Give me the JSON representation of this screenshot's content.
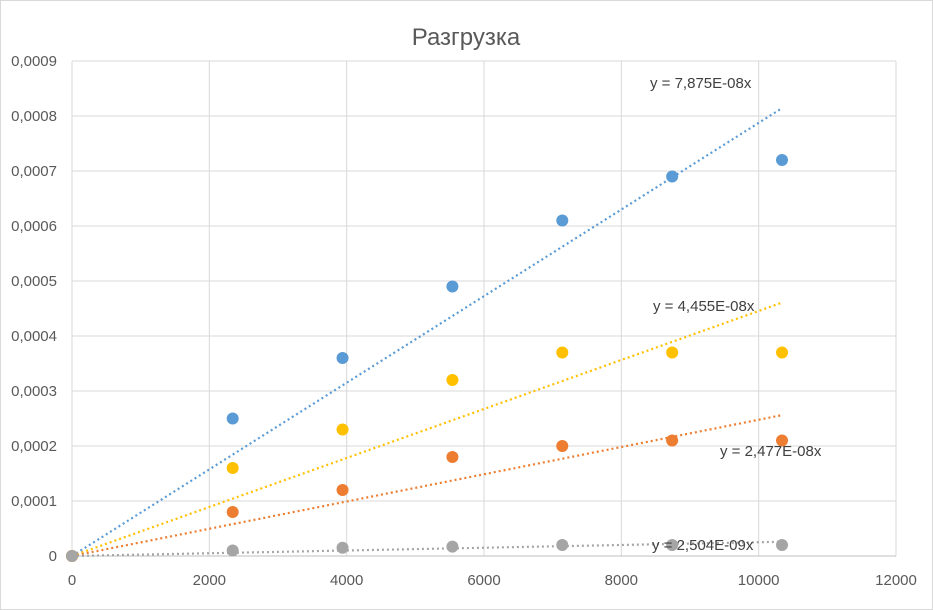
{
  "chart_data": {
    "type": "scatter",
    "title": "Разгрузка",
    "xlim": [
      0,
      12000
    ],
    "ylim": [
      0,
      0.0009
    ],
    "grid": true,
    "x_ticks": [
      "0",
      "2000",
      "4000",
      "6000",
      "8000",
      "10000",
      "12000"
    ],
    "y_ticks": [
      "0",
      "0,0001",
      "0,0002",
      "0,0003",
      "0,0004",
      "0,0005",
      "0,0006",
      "0,0007",
      "0,0008",
      "0,0009"
    ],
    "series": [
      {
        "color": "#5b9bd5",
        "x": [
          0,
          2340,
          3940,
          5540,
          7140,
          8740,
          10340
        ],
        "y": [
          0,
          0.00025,
          0.00036,
          0.00049,
          0.00061,
          0.00069,
          0.00072
        ],
        "trendline": {
          "slope": 7.875e-08,
          "label": "y = 7,875E-08x"
        }
      },
      {
        "color": "#ffc000",
        "x": [
          0,
          2340,
          3940,
          5540,
          7140,
          8740,
          10340
        ],
        "y": [
          0,
          0.00016,
          0.00023,
          0.00032,
          0.00037,
          0.00037,
          0.00037
        ],
        "trendline": {
          "slope": 4.455e-08,
          "label": "y = 4,455E-08x"
        }
      },
      {
        "color": "#ed7d31",
        "x": [
          0,
          2340,
          3940,
          5540,
          7140,
          8740,
          10340
        ],
        "y": [
          0,
          8e-05,
          0.00012,
          0.00018,
          0.0002,
          0.00021,
          0.00021
        ],
        "trendline": {
          "slope": 2.477e-08,
          "label": "y = 2,477E-08x"
        }
      },
      {
        "color": "#a5a5a5",
        "x": [
          0,
          2340,
          3940,
          5540,
          7140,
          8740,
          10340
        ],
        "y": [
          0,
          1e-05,
          1.5e-05,
          1.7e-05,
          2e-05,
          2e-05,
          2e-05
        ],
        "trendline": {
          "slope": 2.504e-09,
          "label": "y = 2,504E-09x"
        }
      }
    ]
  }
}
